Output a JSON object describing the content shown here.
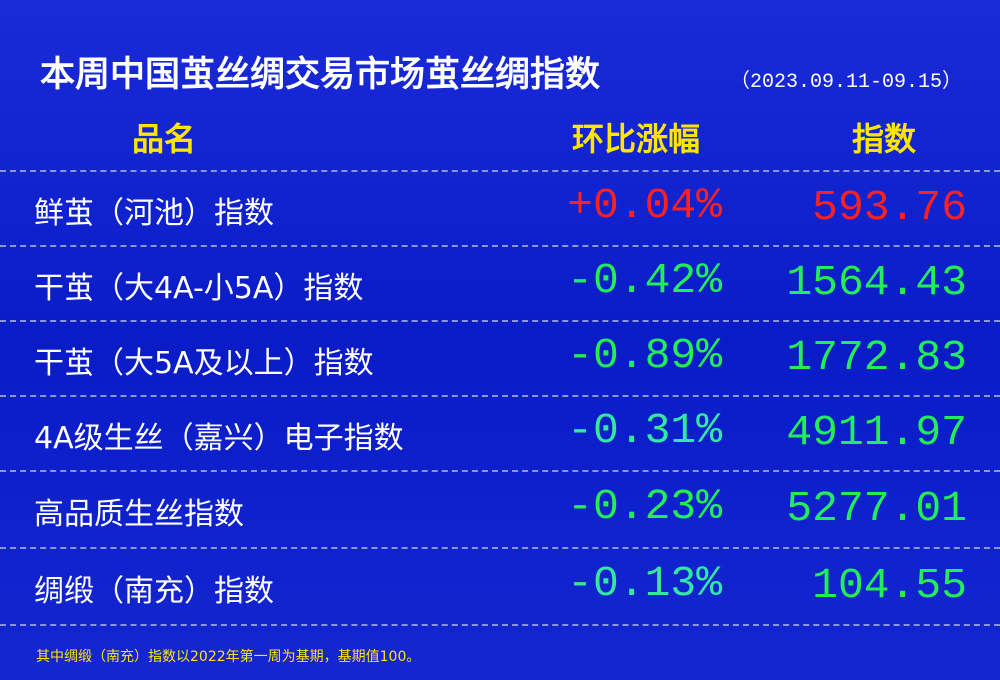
{
  "header": {
    "title": "本周中国茧丝绸交易市场茧丝绸指数",
    "date_range": "（2023.09.11-09.15）"
  },
  "table": {
    "columns": [
      "品名",
      "环比涨幅",
      "指数"
    ],
    "rows": [
      [
        "鲜茧（河池）指数",
        "+0.04%",
        "593.76"
      ],
      [
        "干茧（大4A-小5A）指数",
        "-0.42%",
        "1564.43"
      ],
      [
        "干茧（大5A及以上）指数",
        "-0.89%",
        "1772.83"
      ],
      [
        "4A级生丝（嘉兴）电子指数",
        "-0.31%",
        "4911.97"
      ],
      [
        "高品质生丝指数",
        "-0.23%",
        "5277.01"
      ],
      [
        "绸缎（南充）指数",
        "-0.13%",
        "104.55"
      ]
    ]
  },
  "footnote": "其中绸缎（南充）指数以2022年第一周为基期，基期值100。"
}
